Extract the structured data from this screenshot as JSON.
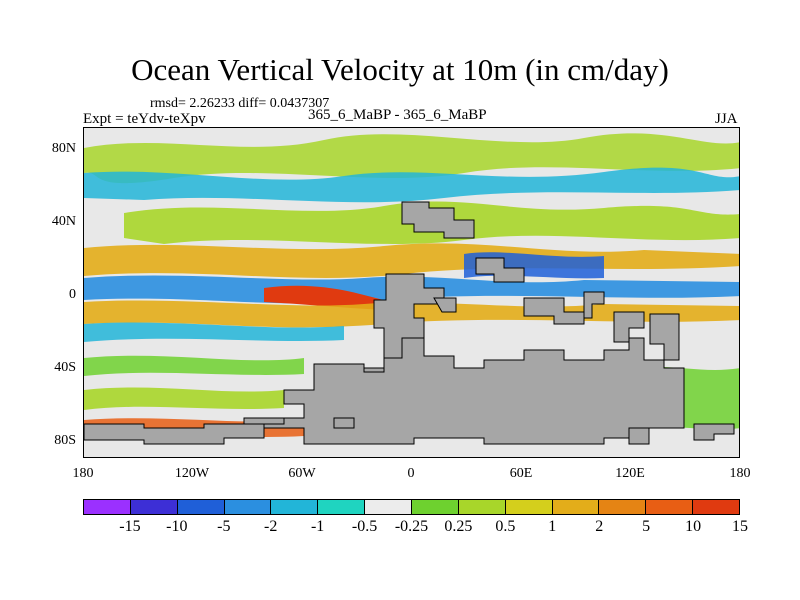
{
  "title": "Ocean Vertical Velocity at 10m (in cm/day)",
  "stats": "rmsd= 2.26233 diff= 0.0437307",
  "expt": "Expt = teYdv-teXpv",
  "center_label": "365_6_MaBP - 365_6_MaBP",
  "season": "JJA",
  "map": {
    "y_ticks": [
      "80N",
      "40N",
      "0",
      "40S",
      "80S"
    ],
    "x_ticks": [
      "180",
      "120W",
      "60W",
      "0",
      "60E",
      "120E",
      "180"
    ],
    "land_color": "#a6a6a6"
  },
  "colorbar": {
    "colors": [
      "#9b30ff",
      "#3d2fd6",
      "#1f5fd8",
      "#2b8fe0",
      "#22b5d8",
      "#1fd4c0",
      "#ececec",
      "#6ed12f",
      "#a8d62a",
      "#d4cf1c",
      "#e3ad1a",
      "#e58414",
      "#e85e14",
      "#e03a10"
    ],
    "labels": [
      "-15",
      "-10",
      "-5",
      "-2",
      "-1",
      "-0.5",
      "-0.25",
      "0.25",
      "0.5",
      "1",
      "2",
      "5",
      "10",
      "15"
    ]
  }
}
